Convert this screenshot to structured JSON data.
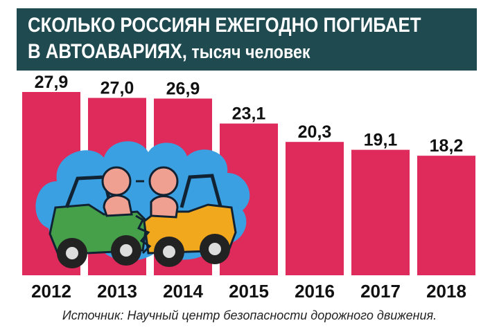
{
  "title": {
    "line1": "СКОЛЬКО РОССИЯН ЕЖЕГОДНО ПОГИБАЕТ",
    "line2_main": "В АВТОАВАРИЯХ,",
    "line2_unit": " тысяч человек"
  },
  "colors": {
    "title_bg": "#1f4a4f",
    "bar": "#df2a5c",
    "cloud": "#3aa0e2"
  },
  "source": "Источник: Научный центр безопасности дорожного движения.",
  "illustration": {
    "name": "car-crash-cartoon",
    "icon": "car-crash-icon"
  },
  "chart_data": {
    "type": "bar",
    "categories": [
      "2012",
      "2013",
      "2014",
      "2015",
      "2016",
      "2017",
      "2018"
    ],
    "values": [
      27.9,
      27.0,
      26.9,
      23.1,
      20.3,
      19.1,
      18.2
    ],
    "value_labels": [
      "27,9",
      "27,0",
      "26,9",
      "23,1",
      "20,3",
      "19,1",
      "18,2"
    ],
    "title": "СКОЛЬКО РОССИЯН ЕЖЕГОДНО ПОГИБАЕТ В АВТОАВАРИЯХ, тысяч человек",
    "xlabel": "",
    "ylabel": "",
    "ylim": [
      0,
      27.9
    ],
    "grid": false,
    "legend": "none"
  }
}
